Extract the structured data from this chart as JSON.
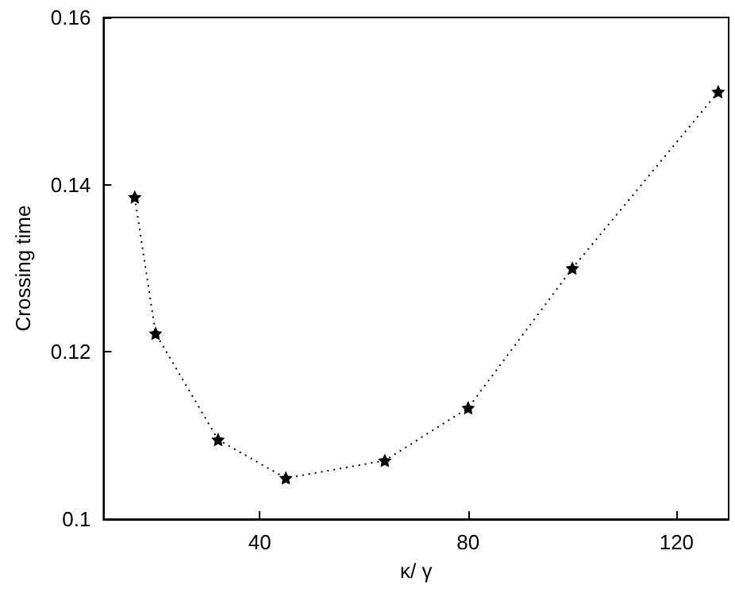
{
  "chart_data": {
    "type": "line",
    "xlabel": "κ/ γ",
    "ylabel": "Crossing time",
    "x": [
      16,
      20,
      32,
      45,
      64,
      80,
      100,
      128
    ],
    "series": [
      {
        "color": "#000000",
        "values": [
          0.1385,
          0.1222,
          0.1095,
          0.1049,
          0.107,
          0.1133,
          0.13,
          0.1511
        ]
      }
    ],
    "xlim": [
      10,
      130
    ],
    "xticks": [
      40,
      80,
      120
    ],
    "ylim": [
      0.1,
      0.16
    ],
    "yticks": [
      0.1,
      0.12,
      0.14,
      0.16
    ],
    "grid": false,
    "legend": false,
    "marker": "star",
    "line_style": "dotted"
  }
}
